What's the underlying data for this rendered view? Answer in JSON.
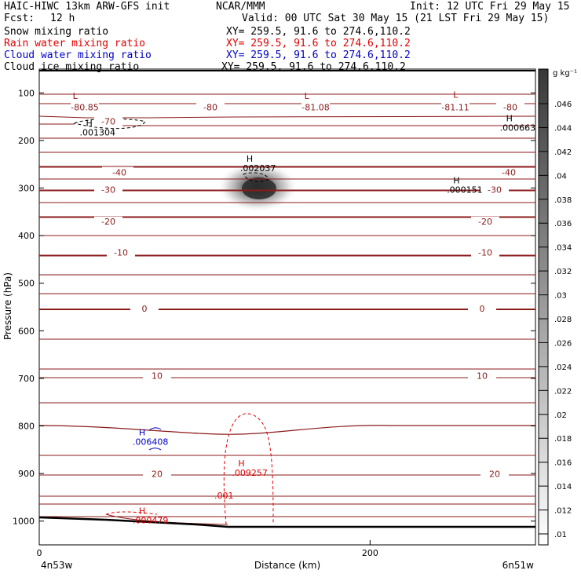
{
  "header": {
    "model": "HAIC-HIWC 13km ARW-GFS init",
    "center": "NCAR/MMM",
    "init": "Init: 12 UTC Fri 29 May 15",
    "fcst_label": "Fcst:",
    "fcst_value": "12 h",
    "valid": "Valid: 00 UTC Sat 30 May 15 (21 LST Fri 29 May 15)",
    "fields": [
      {
        "name": "Snow mixing ratio",
        "color": "#000000",
        "xy": "XY= 259.5, 91.6 to 274.6,110.2"
      },
      {
        "name": "Rain water mixing ratio",
        "color": "#e00000",
        "xy": "XY= 259.5, 91.6 to 274.6,110.2"
      },
      {
        "name": "Cloud water mixing ratio",
        "color": "#0000c8",
        "xy": "XY= 259.5, 91.6 to 274.6,110.2"
      },
      {
        "name": "Cloud ice mixing ratio",
        "color": "#000000",
        "xy": "XY= 259.5, 91.6 to 274.6,110.2"
      }
    ]
  },
  "chart_data": {
    "type": "cross-section contour",
    "xlabel": "Distance (km)",
    "ylabel": "Pressure (hPa)",
    "x_ticks": [
      0,
      200
    ],
    "y_ticks": [
      100,
      200,
      300,
      400,
      500,
      600,
      700,
      800,
      900,
      1000
    ],
    "xlim": [
      0,
      300
    ],
    "ylim": [
      1050,
      50
    ],
    "left_endpoint_label": "4n53w",
    "right_endpoint_label": "6n51w",
    "colorbar": {
      "unit": "g kg⁻¹",
      "ticks": [
        ".046",
        ".044",
        ".042",
        ".04",
        ".038",
        ".036",
        ".034",
        ".032",
        ".03",
        ".028",
        ".026",
        ".024",
        ".022",
        ".02",
        ".018",
        ".016",
        ".014",
        ".012",
        ".01"
      ]
    },
    "temperature_contours": [
      {
        "level": -80,
        "pressure": 130,
        "labels": [
          "-80.85",
          "-80",
          "-81.08",
          "-81.11",
          "-80"
        ]
      },
      {
        "level": -70,
        "pressure": 160,
        "labels": [
          "-70"
        ]
      },
      {
        "level": -40,
        "pressure": 267,
        "labels": [
          "-40",
          "-40"
        ]
      },
      {
        "level": -30,
        "pressure": 303,
        "labels": [
          "-30",
          "-30"
        ]
      },
      {
        "level": -20,
        "pressure": 370,
        "labels": [
          "-20",
          "-20"
        ]
      },
      {
        "level": -10,
        "pressure": 435,
        "labels": [
          "-10",
          "-10"
        ]
      },
      {
        "level": 0,
        "pressure": 553,
        "labels": [
          "0",
          "0"
        ]
      },
      {
        "level": 10,
        "pressure": 694,
        "labels": [
          "10",
          "10"
        ]
      },
      {
        "level": 20,
        "pressure": 901,
        "labels": [
          "20",
          "20"
        ]
      }
    ],
    "extrema": [
      {
        "symbol": "L",
        "value": "",
        "x_km": 25,
        "pressure": 113,
        "color": "#a01010"
      },
      {
        "symbol": "L",
        "value": "",
        "x_km": 165,
        "pressure": 113,
        "color": "#a01010"
      },
      {
        "symbol": "L",
        "value": "",
        "x_km": 255,
        "pressure": 110,
        "color": "#a01010"
      },
      {
        "symbol": "H",
        "value": ".001304",
        "x_km": 33,
        "pressure": 170,
        "color": "#000000"
      },
      {
        "symbol": "H",
        "value": ".000663",
        "x_km": 287,
        "pressure": 160,
        "color": "#000000"
      },
      {
        "symbol": "H",
        "value": ".002037",
        "x_km": 130,
        "pressure": 245,
        "color": "#000000"
      },
      {
        "symbol": "H",
        "value": ".000151",
        "x_km": 255,
        "pressure": 290,
        "color": "#000000"
      },
      {
        "symbol": "H",
        "value": ".006408",
        "x_km": 65,
        "pressure": 820,
        "color": "#0000c8"
      },
      {
        "symbol": "H",
        "value": ".009257",
        "x_km": 125,
        "pressure": 885,
        "color": "#e00000"
      },
      {
        "symbol": "H",
        "value": ".000479",
        "x_km": 65,
        "pressure": 985,
        "color": "#e00000"
      }
    ],
    "rain_contour_label": ".001",
    "snow_max_region": {
      "x_km": 135,
      "pressure": 285,
      "max_g_per_kg": 0.044
    }
  }
}
